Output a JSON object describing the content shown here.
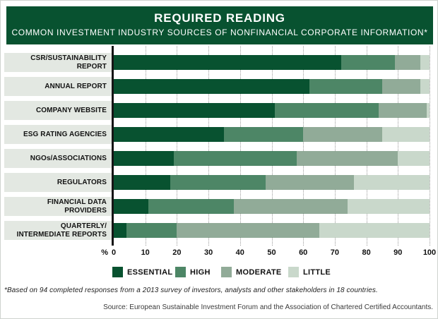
{
  "header": {
    "title": "REQUIRED READING",
    "subtitle": "COMMON INVESTMENT INDUSTRY SOURCES OF NONFINANCIAL CORPORATE INFORMATION*"
  },
  "colors": {
    "banner_green": "#085230",
    "essential": "#085230",
    "high": "#4d8666",
    "moderate": "#91ab98",
    "little": "#c9d8cb",
    "label_strip": "#e3e8e2",
    "gridline": "#9b9b9b"
  },
  "chart_data": {
    "type": "bar",
    "orientation": "horizontal",
    "stacked": true,
    "unit": "%",
    "title": "REQUIRED READING",
    "subtitle": "COMMON INVESTMENT INDUSTRY SOURCES OF NONFINANCIAL CORPORATE INFORMATION*",
    "categories": [
      "CSR/SUSTAINABILITY REPORT",
      "ANNUAL REPORT",
      "COMPANY WEBSITE",
      "ESG RATING AGENCIES",
      "NGOs/ASSOCIATIONS",
      "REGULATORS",
      "FINANCIAL DATA PROVIDERS",
      "QUARTERLY/\nINTERMEDIATE REPORTS"
    ],
    "series": [
      {
        "name": "ESSENTIAL",
        "color": "#085230",
        "values": [
          72,
          62,
          51,
          35,
          19,
          18,
          11,
          4
        ]
      },
      {
        "name": "HIGH",
        "color": "#4d8666",
        "values": [
          17,
          23,
          33,
          25,
          39,
          30,
          27,
          16
        ]
      },
      {
        "name": "MODERATE",
        "color": "#91ab98",
        "values": [
          8,
          12,
          15,
          25,
          32,
          28,
          36,
          45
        ]
      },
      {
        "name": "LITTLE",
        "color": "#c9d8cb",
        "values": [
          3,
          3,
          1,
          15,
          10,
          24,
          26,
          35
        ]
      }
    ],
    "xlim": [
      0,
      100
    ],
    "x_ticks": [
      0,
      10,
      20,
      30,
      40,
      50,
      60,
      70,
      80,
      90,
      100
    ],
    "x_axis_prefix_label": "%",
    "grid": "dotted vertical lines every 10%",
    "legend_position": "bottom"
  },
  "footnote": "*Based on 94 completed responses from a 2013 survey of investors, analysts and other stakeholders in 18 countries.",
  "source": "Source: European Sustainable Investment Forum and the Association of Chartered Certified Accountants."
}
